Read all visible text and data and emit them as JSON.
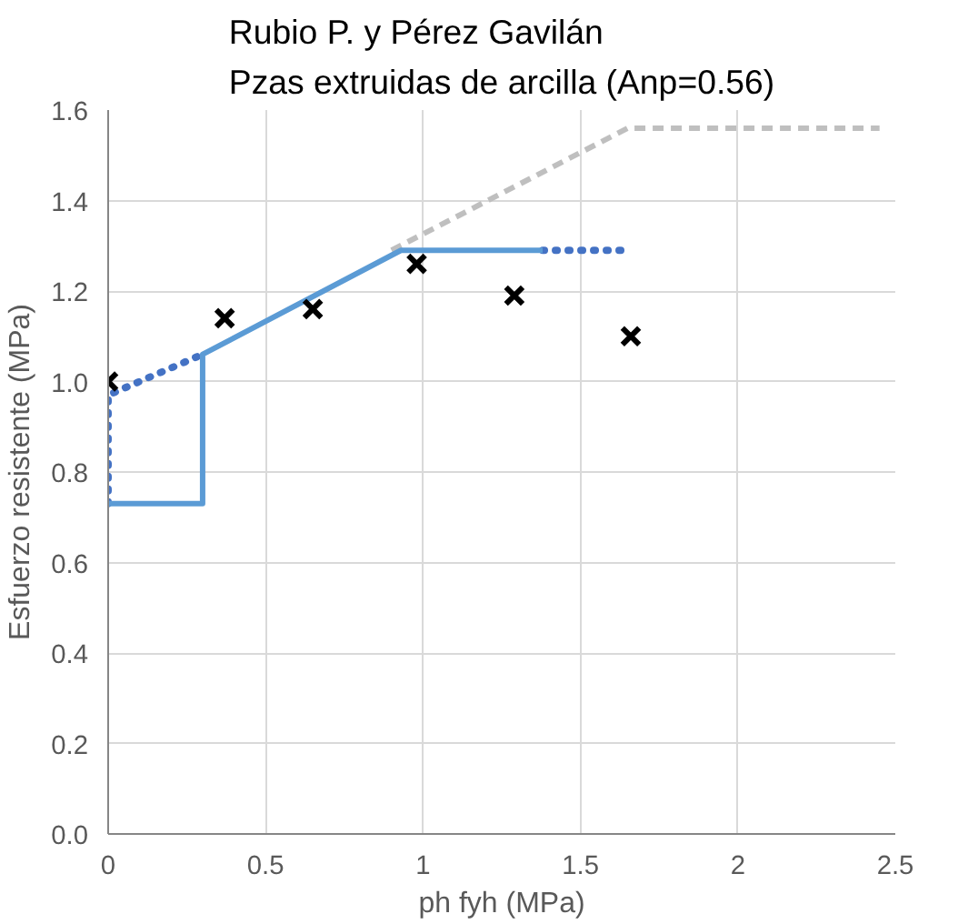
{
  "chart_data": {
    "type": "line",
    "title": "Rubio P. y Pérez Gavilán\nPzas extruidas de arcilla (Anp=0.56)",
    "xlabel": "ph fyh (MPa)",
    "ylabel": "Esfuerzo resistente (MPa)",
    "xlim": [
      0,
      2.5
    ],
    "ylim": [
      0,
      1.6
    ],
    "xticks": [
      0,
      0.5,
      1,
      1.5,
      2,
      2.5
    ],
    "yticks": [
      {
        "value": 0,
        "label": "0.0"
      },
      {
        "value": 0.2,
        "label": "0.2"
      },
      {
        "value": 0.4,
        "label": "0.4"
      },
      {
        "value": 0.6,
        "label": "0.6"
      },
      {
        "value": 0.8,
        "label": "0.8"
      },
      {
        "value": 1.0,
        "label": "1.0"
      },
      {
        "value": 1.2,
        "label": "1.2"
      },
      {
        "value": 1.4,
        "label": "1.4"
      },
      {
        "value": 1.6,
        "label": "1.6"
      }
    ],
    "grid": true,
    "series": [
      {
        "type": "line",
        "color": "#bfbfbf",
        "line_style": "dashed",
        "x": [
          0.9,
          1.65,
          2.45
        ],
        "values": [
          1.29,
          1.56,
          1.56
        ]
      },
      {
        "type": "line",
        "color": "#4472c4",
        "line_style": "dotted",
        "x": [
          0,
          0,
          0.3
        ],
        "values": [
          0.73,
          0.97,
          1.06
        ]
      },
      {
        "type": "line",
        "color": "#4472c4",
        "line_style": "dotted",
        "x": [
          1.38,
          1.66
        ],
        "values": [
          1.29,
          1.29
        ]
      },
      {
        "type": "line",
        "color": "#5b9bd5",
        "line_style": "solid",
        "x": [
          0,
          0.3,
          0.3,
          0.93,
          1.38
        ],
        "values": [
          0.73,
          0.73,
          1.06,
          1.29,
          1.29
        ]
      },
      {
        "type": "scatter",
        "color": "#000000",
        "marker": "cross",
        "x": [
          0,
          0.37,
          0.65,
          0.98,
          1.29,
          1.66
        ],
        "values": [
          1.0,
          1.14,
          1.16,
          1.26,
          1.19,
          1.1
        ]
      }
    ]
  }
}
